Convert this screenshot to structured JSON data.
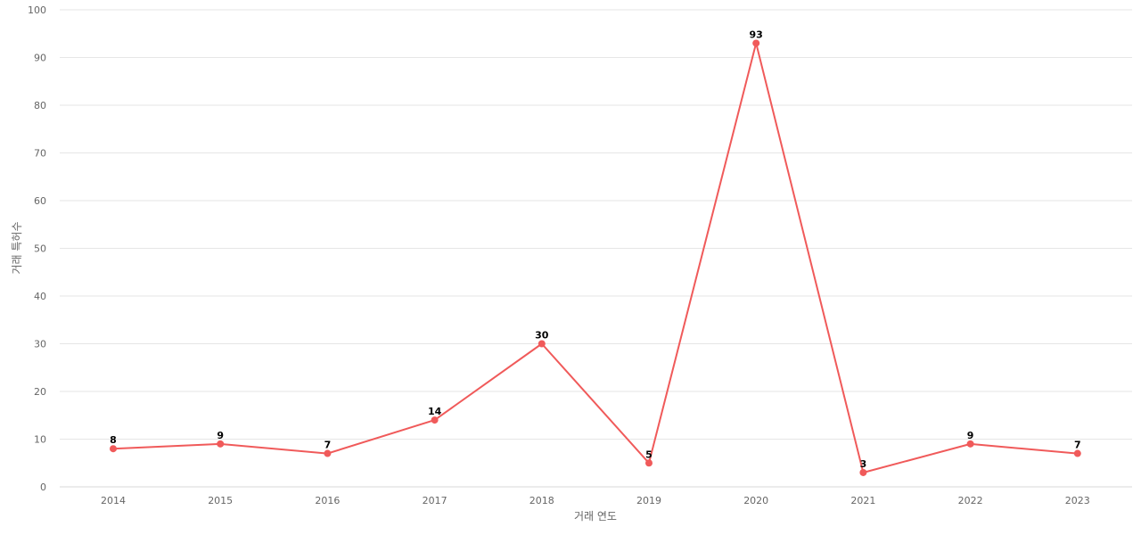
{
  "chart_data": {
    "type": "line",
    "title": "",
    "xlabel": "거래 연도",
    "ylabel": "거래 특허수",
    "ylim": [
      0,
      100
    ],
    "y_ticks": [
      0,
      10,
      20,
      30,
      40,
      50,
      60,
      70,
      80,
      90,
      100
    ],
    "grid": true,
    "legend": "none",
    "categories": [
      "2014",
      "2015",
      "2016",
      "2017",
      "2018",
      "2019",
      "2020",
      "2021",
      "2022",
      "2023"
    ],
    "series": [
      {
        "values": [
          8,
          9,
          7,
          14,
          30,
          5,
          93,
          3,
          9,
          7
        ],
        "color": "#f05a5a"
      }
    ]
  }
}
